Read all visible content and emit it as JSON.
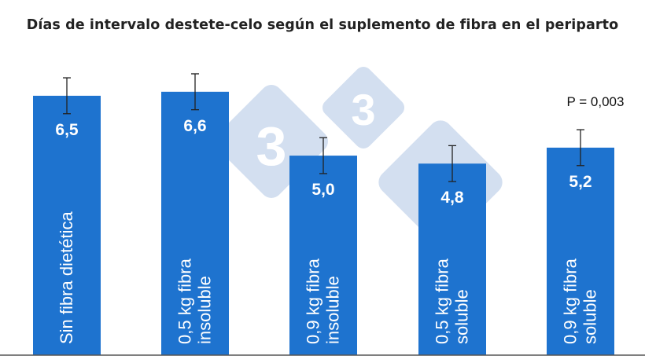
{
  "chart_data": {
    "type": "bar",
    "title": "Días de intervalo destete-celo según el suplemento de fibra en el periparto",
    "categories": [
      [
        "Sin fibra dietética"
      ],
      [
        "0,5 kg fibra",
        "insoluble"
      ],
      [
        "0,9 kg fibra",
        "insoluble"
      ],
      [
        "0,5 kg fibra",
        "soluble"
      ],
      [
        "0,9 kg fibra",
        "soluble"
      ]
    ],
    "values": [
      6.5,
      6.6,
      5.0,
      4.8,
      5.2
    ],
    "value_labels": [
      "6,5",
      "6,6",
      "5,0",
      "4,8",
      "5,2"
    ],
    "error": [
      0.45,
      0.45,
      0.45,
      0.45,
      0.45
    ],
    "ylim": [
      0,
      8.9
    ],
    "annotation": "P = 0,003",
    "annotation_position": "top-right",
    "grid": false,
    "legend": "none",
    "bar_color": "#1e73cf",
    "error_bar_color": "#222222",
    "watermark_color": "#d3dff0"
  }
}
